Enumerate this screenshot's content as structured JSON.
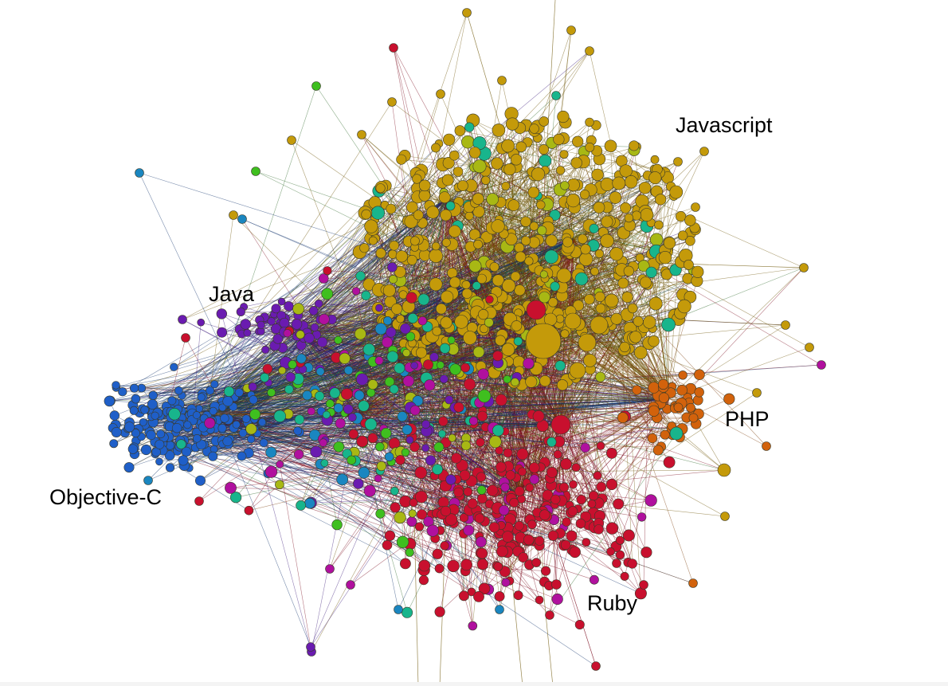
{
  "labels": {
    "javascript": "Javascript",
    "java": "Java",
    "php": "PHP",
    "objective_c": "Objective-C",
    "ruby": "Ruby"
  },
  "colors": {
    "javascript": "#c49a0a",
    "javascript_edge": "#6b5200",
    "ruby": "#c8102e",
    "ruby_edge": "#7a0a1c",
    "objective_c": "#1f5fc8",
    "objective_c_edge": "#0d2f6a",
    "java": "#6a1bb0",
    "php": "#d2620c",
    "teal": "#18b58c",
    "green": "#3fbf1f",
    "light_blue": "#1a86c0",
    "magenta": "#b0109e",
    "olive": "#a8b814",
    "node_outline": "#3a3a2a"
  }
}
